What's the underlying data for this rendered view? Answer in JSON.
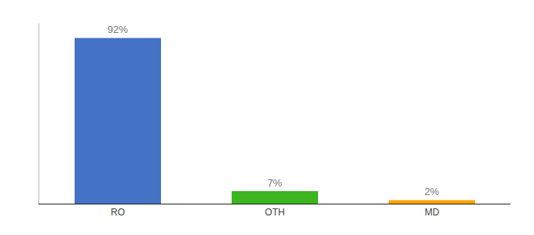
{
  "chart_data": {
    "type": "bar",
    "categories": [
      "RO",
      "OTH",
      "MD"
    ],
    "values": [
      92,
      7,
      2
    ],
    "value_labels": [
      "92%",
      "7%",
      "2%"
    ],
    "colors": [
      "#4472C4",
      "#3CB520",
      "#FFA500"
    ],
    "ylim": [
      0,
      100
    ],
    "grid": false,
    "data_labels": true,
    "tick_labels": "x"
  }
}
